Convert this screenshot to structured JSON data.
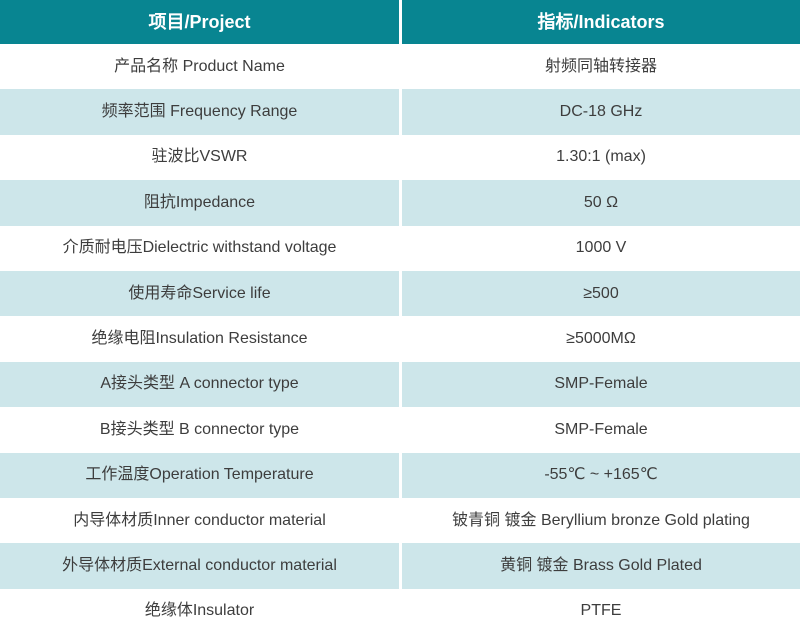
{
  "colors": {
    "header_bg": "#088591",
    "header_text": "#ffffff",
    "alt_row_bg": "#cde6ea",
    "body_text": "#3d3d3d"
  },
  "header": {
    "project": "项目/Project",
    "indicators": "指标/Indicators"
  },
  "rows": [
    {
      "project": "产品名称 Product Name",
      "indicator": "射频同轴转接器"
    },
    {
      "project": "频率范围 Frequency Range",
      "indicator": "DC-18 GHz"
    },
    {
      "project": "驻波比VSWR",
      "indicator": "1.30:1 (max)"
    },
    {
      "project": "阻抗Impedance",
      "indicator": "50 Ω"
    },
    {
      "project": "介质耐电压Dielectric withstand voltage",
      "indicator": "1000 V"
    },
    {
      "project": "使用寿命Service life",
      "indicator": "≥500"
    },
    {
      "project": "绝缘电阻Insulation Resistance",
      "indicator": "≥5000MΩ"
    },
    {
      "project": "A接头类型 A connector type",
      "indicator": "SMP-Female"
    },
    {
      "project": "B接头类型 B connector type",
      "indicator": "SMP-Female"
    },
    {
      "project": "工作温度Operation Temperature",
      "indicator": "-55℃ ~ +165℃"
    },
    {
      "project": "内导体材质Inner conductor material",
      "indicator": "铍青铜 镀金 Beryllium bronze Gold plating"
    },
    {
      "project": "外导体材质External conductor material",
      "indicator": "黄铜 镀金 Brass Gold Plated"
    },
    {
      "project": "绝缘体Insulator",
      "indicator": "PTFE"
    }
  ]
}
